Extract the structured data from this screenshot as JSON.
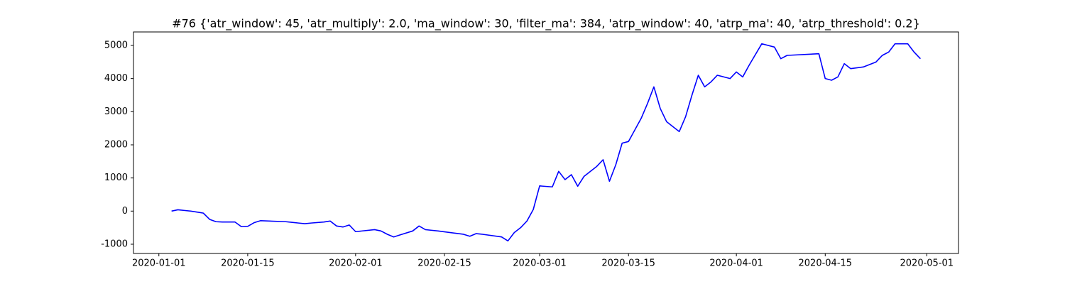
{
  "chart_data": {
    "type": "line",
    "title": "#76 {'atr_window': 45, 'atr_multiply': 2.0, 'ma_window': 30, 'filter_ma': 384, 'atrp_window': 40, 'atrp_ma': 40, 'atrp_threshold': 0.2}",
    "color": "#0000ff",
    "x": [
      "2020-01-03",
      "2020-01-04",
      "2020-01-05",
      "2020-01-06",
      "2020-01-07",
      "2020-01-08",
      "2020-01-09",
      "2020-01-10",
      "2020-01-11",
      "2020-01-13",
      "2020-01-14",
      "2020-01-15",
      "2020-01-16",
      "2020-01-17",
      "2020-01-21",
      "2020-01-22",
      "2020-01-23",
      "2020-01-24",
      "2020-01-25",
      "2020-01-27",
      "2020-01-28",
      "2020-01-29",
      "2020-01-30",
      "2020-01-31",
      "2020-02-01",
      "2020-02-04",
      "2020-02-05",
      "2020-02-06",
      "2020-02-07",
      "2020-02-08",
      "2020-02-10",
      "2020-02-11",
      "2020-02-12",
      "2020-02-13",
      "2020-02-14",
      "2020-02-18",
      "2020-02-19",
      "2020-02-20",
      "2020-02-21",
      "2020-02-24",
      "2020-02-25",
      "2020-02-26",
      "2020-02-27",
      "2020-02-28",
      "2020-02-29",
      "2020-03-01",
      "2020-03-03",
      "2020-03-04",
      "2020-03-05",
      "2020-03-06",
      "2020-03-07",
      "2020-03-08",
      "2020-03-10",
      "2020-03-11",
      "2020-03-12",
      "2020-03-13",
      "2020-03-14",
      "2020-03-15",
      "2020-03-17",
      "2020-03-18",
      "2020-03-19",
      "2020-03-20",
      "2020-03-21",
      "2020-03-23",
      "2020-03-24",
      "2020-03-25",
      "2020-03-26",
      "2020-03-27",
      "2020-03-28",
      "2020-03-29",
      "2020-03-31",
      "2020-04-01",
      "2020-04-02",
      "2020-04-03",
      "2020-04-05",
      "2020-04-07",
      "2020-04-08",
      "2020-04-09",
      "2020-04-14",
      "2020-04-15",
      "2020-04-16",
      "2020-04-17",
      "2020-04-18",
      "2020-04-19",
      "2020-04-21",
      "2020-04-23",
      "2020-04-24",
      "2020-04-25",
      "2020-04-26",
      "2020-04-28",
      "2020-04-29",
      "2020-04-30"
    ],
    "values": [
      0,
      40,
      20,
      0,
      -30,
      -60,
      -250,
      -320,
      -330,
      -330,
      -470,
      -460,
      -350,
      -290,
      -320,
      -340,
      -360,
      -380,
      -360,
      -330,
      -300,
      -450,
      -480,
      -420,
      -620,
      -560,
      -600,
      -700,
      -780,
      -720,
      -600,
      -450,
      -560,
      -580,
      -600,
      -700,
      -760,
      -680,
      -700,
      -780,
      -900,
      -650,
      -500,
      -300,
      50,
      760,
      730,
      1200,
      950,
      1100,
      750,
      1050,
      1350,
      1550,
      900,
      1400,
      2050,
      2100,
      2800,
      3250,
      3750,
      3100,
      2700,
      2400,
      2850,
      3500,
      4100,
      3750,
      3900,
      4100,
      4000,
      4200,
      4050,
      4400,
      5050,
      4950,
      4600,
      4700,
      4750,
      4000,
      3950,
      4050,
      4450,
      4300,
      4350,
      4500,
      4700,
      4800,
      5050,
      5050,
      4800,
      4600
    ],
    "xlim": [
      "2019-12-28",
      "2020-05-06"
    ],
    "xticks": [
      "2020-01-01",
      "2020-01-15",
      "2020-02-01",
      "2020-02-15",
      "2020-03-01",
      "2020-03-15",
      "2020-04-01",
      "2020-04-15",
      "2020-05-01"
    ],
    "ylim": [
      -1279,
      5407
    ],
    "yticks": [
      -1000,
      0,
      1000,
      2000,
      3000,
      4000,
      5000
    ],
    "grid": false
  }
}
